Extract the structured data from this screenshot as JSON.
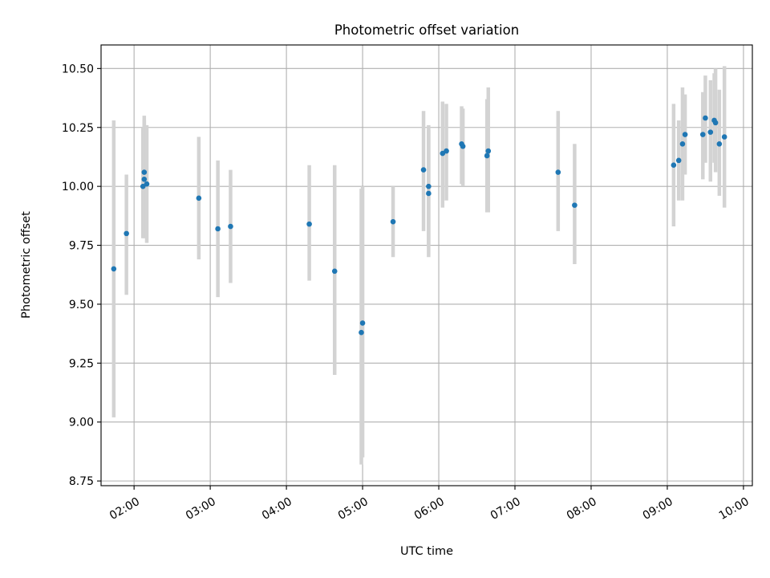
{
  "chart_data": {
    "type": "scatter",
    "title": "Photometric offset variation",
    "xlabel": "UTC time",
    "ylabel": "Photometric offset",
    "xlim": [
      "01:34",
      "10:07"
    ],
    "ylim": [
      8.73,
      10.6
    ],
    "x_ticks": [
      "02:00",
      "03:00",
      "04:00",
      "05:00",
      "06:00",
      "07:00",
      "08:00",
      "09:00",
      "10:00"
    ],
    "y_ticks": [
      "8.75",
      "9.00",
      "9.25",
      "9.50",
      "9.75",
      "10.00",
      "10.25",
      "10.50"
    ],
    "grid": true,
    "marker_color": "#1f77b4",
    "errorbar_color": "#d3d3d3",
    "points": [
      {
        "t": "01:44",
        "y": 9.65,
        "lo": 9.02,
        "hi": 10.28
      },
      {
        "t": "01:54",
        "y": 9.8,
        "lo": 9.54,
        "hi": 10.05
      },
      {
        "t": "02:07",
        "y": 10.0,
        "lo": 9.78,
        "hi": 10.25
      },
      {
        "t": "02:08",
        "y": 10.06,
        "lo": 9.82,
        "hi": 10.3
      },
      {
        "t": "02:08",
        "y": 10.03,
        "lo": 9.78,
        "hi": 10.28
      },
      {
        "t": "02:10",
        "y": 10.01,
        "lo": 9.76,
        "hi": 10.26
      },
      {
        "t": "02:51",
        "y": 9.95,
        "lo": 9.69,
        "hi": 10.21
      },
      {
        "t": "03:06",
        "y": 9.82,
        "lo": 9.53,
        "hi": 10.11
      },
      {
        "t": "03:16",
        "y": 9.83,
        "lo": 9.59,
        "hi": 10.07
      },
      {
        "t": "04:18",
        "y": 9.84,
        "lo": 9.6,
        "hi": 10.09
      },
      {
        "t": "04:38",
        "y": 9.64,
        "lo": 9.2,
        "hi": 10.09
      },
      {
        "t": "04:59",
        "y": 9.38,
        "lo": 8.82,
        "hi": 9.99
      },
      {
        "t": "05:00",
        "y": 9.42,
        "lo": 8.85,
        "hi": 10.0
      },
      {
        "t": "05:24",
        "y": 9.85,
        "lo": 9.7,
        "hi": 10.0
      },
      {
        "t": "05:48",
        "y": 10.07,
        "lo": 9.81,
        "hi": 10.32
      },
      {
        "t": "05:52",
        "y": 10.0,
        "lo": 9.75,
        "hi": 10.24
      },
      {
        "t": "05:52",
        "y": 9.97,
        "lo": 9.7,
        "hi": 10.26
      },
      {
        "t": "06:03",
        "y": 10.14,
        "lo": 9.91,
        "hi": 10.36
      },
      {
        "t": "06:06",
        "y": 10.15,
        "lo": 9.94,
        "hi": 10.35
      },
      {
        "t": "06:18",
        "y": 10.18,
        "lo": 10.01,
        "hi": 10.34
      },
      {
        "t": "06:19",
        "y": 10.17,
        "lo": 10.0,
        "hi": 10.33
      },
      {
        "t": "06:38",
        "y": 10.13,
        "lo": 9.89,
        "hi": 10.37
      },
      {
        "t": "06:39",
        "y": 10.15,
        "lo": 9.89,
        "hi": 10.42
      },
      {
        "t": "07:34",
        "y": 10.06,
        "lo": 9.81,
        "hi": 10.32
      },
      {
        "t": "07:47",
        "y": 9.92,
        "lo": 9.67,
        "hi": 10.18
      },
      {
        "t": "09:05",
        "y": 10.09,
        "lo": 9.83,
        "hi": 10.35
      },
      {
        "t": "09:09",
        "y": 10.11,
        "lo": 9.94,
        "hi": 10.28
      },
      {
        "t": "09:12",
        "y": 10.18,
        "lo": 9.94,
        "hi": 10.42
      },
      {
        "t": "09:14",
        "y": 10.22,
        "lo": 10.05,
        "hi": 10.39
      },
      {
        "t": "09:28",
        "y": 10.22,
        "lo": 10.03,
        "hi": 10.4
      },
      {
        "t": "09:30",
        "y": 10.29,
        "lo": 10.1,
        "hi": 10.47
      },
      {
        "t": "09:34",
        "y": 10.23,
        "lo": 10.02,
        "hi": 10.45
      },
      {
        "t": "09:37",
        "y": 10.28,
        "lo": 10.1,
        "hi": 10.48
      },
      {
        "t": "09:38",
        "y": 10.27,
        "lo": 10.06,
        "hi": 10.5
      },
      {
        "t": "09:41",
        "y": 10.18,
        "lo": 9.96,
        "hi": 10.41
      },
      {
        "t": "09:45",
        "y": 10.21,
        "lo": 9.91,
        "hi": 10.51
      }
    ]
  }
}
